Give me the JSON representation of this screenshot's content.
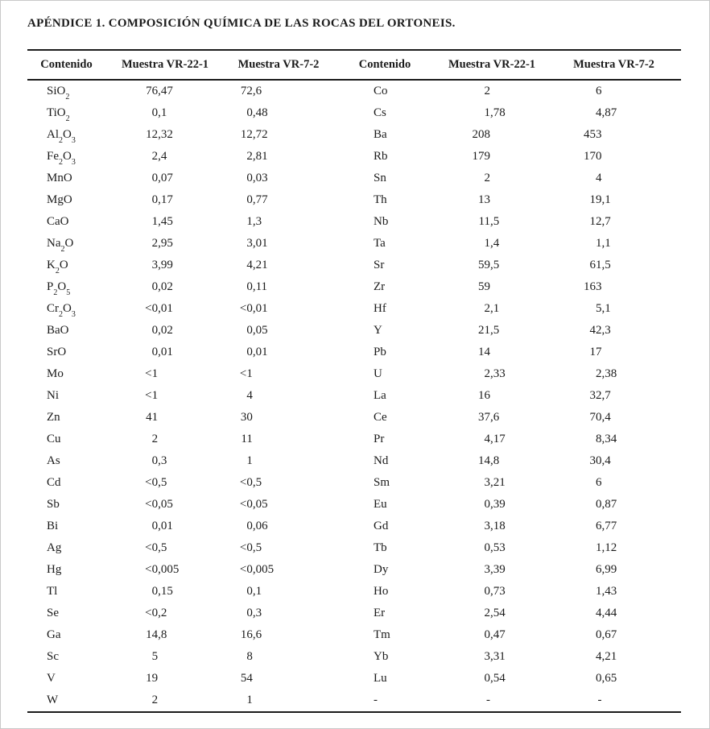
{
  "title": "APÉNDICE 1. COMPOSICIÓN QUÍMICA DE LAS ROCAS DEL ORTONEIS.",
  "table": {
    "headers": [
      "Contenido",
      "Muestra VR-22-1",
      "Muestra VR-7-2",
      "Contenido",
      "Muestra VR-22-1",
      "Muestra VR-7-2"
    ],
    "rows": [
      [
        "SiO_2",
        "76,47",
        "72,6",
        "Co",
        "2",
        "6"
      ],
      [
        "TiO_2",
        "0,1",
        "0,48",
        "Cs",
        "1,78",
        "4,87"
      ],
      [
        "Al_2O_3",
        "12,32",
        "12,72",
        "Ba",
        "208",
        "453"
      ],
      [
        "Fe_2O_3",
        "2,4",
        "2,81",
        "Rb",
        "179",
        "170"
      ],
      [
        "MnO",
        "0,07",
        "0,03",
        "Sn",
        "2",
        "4"
      ],
      [
        "MgO",
        "0,17",
        "0,77",
        "Th",
        "13",
        "19,1"
      ],
      [
        "CaO",
        "1,45",
        "1,3",
        "Nb",
        "11,5",
        "12,7"
      ],
      [
        "Na_2O",
        "2,95",
        "3,01",
        "Ta",
        "1,4",
        "1,1"
      ],
      [
        "K_2O",
        "3,99",
        "4,21",
        "Sr",
        "59,5",
        "61,5"
      ],
      [
        "P_2O_5",
        "0,02",
        "0,11",
        "Zr",
        "59",
        "163"
      ],
      [
        "Cr_2O_3",
        "<0,01",
        "<0,01",
        "Hf",
        "2,1",
        "5,1"
      ],
      [
        "BaO",
        "0,02",
        "0,05",
        "Y",
        "21,5",
        "42,3"
      ],
      [
        "SrO",
        "0,01",
        "0,01",
        "Pb",
        "14",
        "17"
      ],
      [
        "Mo",
        "<1",
        "<1",
        "U",
        "2,33",
        "2,38"
      ],
      [
        "Ni",
        "<1",
        "4",
        "La",
        "16",
        "32,7"
      ],
      [
        "Zn",
        "41",
        "30",
        "Ce",
        "37,6",
        "70,4"
      ],
      [
        "Cu",
        "2",
        "11",
        "Pr",
        "4,17",
        "8,34"
      ],
      [
        "As",
        "0,3",
        "1",
        "Nd",
        "14,8",
        "30,4"
      ],
      [
        "Cd",
        "<0,5",
        "<0,5",
        "Sm",
        "3,21",
        "6"
      ],
      [
        "Sb",
        "<0,05",
        "<0,05",
        "Eu",
        "0,39",
        "0,87"
      ],
      [
        "Bi",
        "0,01",
        "0,06",
        "Gd",
        "3,18",
        "6,77"
      ],
      [
        "Ag",
        "<0,5",
        "<0,5",
        "Tb",
        "0,53",
        "1,12"
      ],
      [
        "Hg",
        "<0,005",
        "<0,005",
        "Dy",
        "3,39",
        "6,99"
      ],
      [
        "Tl",
        "0,15",
        "0,1",
        "Ho",
        "0,73",
        "1,43"
      ],
      [
        "Se",
        "<0,2",
        "0,3",
        "Er",
        "2,54",
        "4,44"
      ],
      [
        "Ga",
        "14,8",
        "16,6",
        "Tm",
        "0,47",
        "0,67"
      ],
      [
        "Sc",
        "5",
        "8",
        "Yb",
        "3,31",
        "4,21"
      ],
      [
        "V",
        "19",
        "54",
        "Lu",
        "0,54",
        "0,65"
      ],
      [
        "W",
        "2",
        "1",
        "-",
        "-",
        "-"
      ]
    ]
  }
}
